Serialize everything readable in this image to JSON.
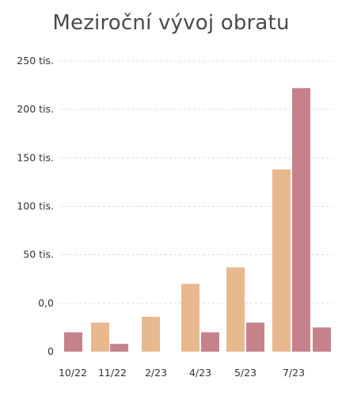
{
  "chart_data": {
    "type": "bar",
    "title": "Meziroční vývoj obratu",
    "xlabel": "",
    "ylabel": "",
    "categories": [
      "10/22",
      "11/22",
      "2/23",
      "4/23",
      "5/23",
      "7/23"
    ],
    "y_tick_labels": [
      "0",
      "0,0",
      "50 tis.",
      "100 tis.",
      "150 tis.",
      "200 tis.",
      "250 tis."
    ],
    "ylim": [
      -50000,
      250000
    ],
    "grid": true,
    "bars": [
      {
        "color": "#C6828B",
        "value": -30000
      },
      {
        "color": "#E8B88F",
        "value": -20000
      },
      {
        "color": "#C6828B",
        "value": -42000
      },
      {
        "color": "#E8B88F",
        "value": -14000
      },
      {
        "color": "#E8B88F",
        "value": 20000
      },
      {
        "color": "#C6828B",
        "value": -30000
      },
      {
        "color": "#E8B88F",
        "value": 37000
      },
      {
        "color": "#C6828B",
        "value": -20000
      },
      {
        "color": "#E8B88F",
        "value": 138000
      },
      {
        "color": "#C6828B",
        "value": 222000
      },
      {
        "color": "#C6828B",
        "value": -25000
      }
    ]
  }
}
